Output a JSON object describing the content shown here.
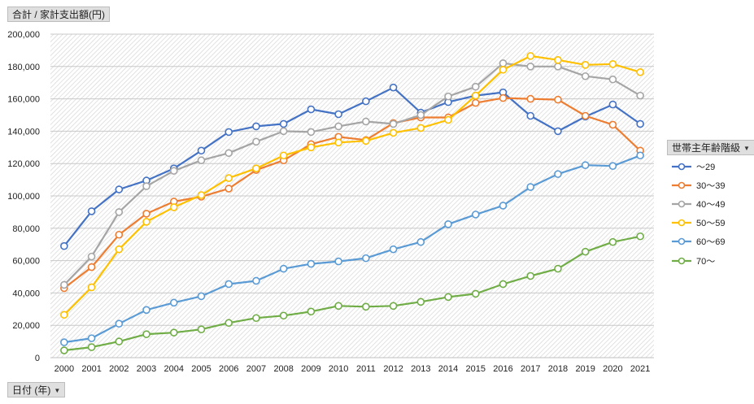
{
  "y_field": {
    "label": "合計 / 家計支出額(円)"
  },
  "x_field": {
    "label": "日付 (年)"
  },
  "legend_field": {
    "label": "世帯主年齢階級"
  },
  "chart_data": {
    "type": "line",
    "title": "",
    "xlabel": "",
    "ylabel": "",
    "ylim": [
      0,
      200000
    ],
    "y_ticks": [
      "0",
      "20,000",
      "40,000",
      "60,000",
      "80,000",
      "100,000",
      "120,000",
      "140,000",
      "160,000",
      "180,000",
      "200,000"
    ],
    "categories": [
      "2000",
      "2001",
      "2002",
      "2003",
      "2004",
      "2005",
      "2006",
      "2007",
      "2008",
      "2009",
      "2010",
      "2011",
      "2012",
      "2013",
      "2014",
      "2015",
      "2016",
      "2017",
      "2018",
      "2019",
      "2020",
      "2021"
    ],
    "grid": true,
    "legend_position": "right",
    "series": [
      {
        "name": "～29",
        "color": "#4472c4",
        "values": [
          69000,
          90500,
          104000,
          109500,
          117000,
          128000,
          139500,
          143000,
          144500,
          153500,
          150500,
          158500,
          167000,
          151500,
          158000,
          162000,
          164000,
          149500,
          140000,
          149000,
          156500,
          144500
        ]
      },
      {
        "name": "30～39",
        "color": "#ed7d31",
        "values": [
          43000,
          56000,
          76000,
          89000,
          96500,
          99500,
          104500,
          116000,
          122000,
          132000,
          136500,
          134500,
          145000,
          148500,
          148500,
          157500,
          160500,
          160000,
          159500,
          149500,
          144000,
          128000
        ]
      },
      {
        "name": "40～49",
        "color": "#a5a5a5",
        "values": [
          45000,
          62500,
          90000,
          106000,
          115500,
          122000,
          126500,
          133500,
          140000,
          139500,
          143000,
          146000,
          144500,
          150000,
          161500,
          167500,
          182000,
          180000,
          180000,
          174000,
          172000,
          162000
        ]
      },
      {
        "name": "50～59",
        "color": "#ffc000",
        "values": [
          26500,
          43500,
          67000,
          84000,
          93000,
          100500,
          111000,
          117000,
          125000,
          130000,
          133000,
          134000,
          139000,
          142000,
          147000,
          162000,
          178000,
          186500,
          184000,
          181000,
          181500,
          176500
        ]
      },
      {
        "name": "60～69",
        "color": "#5b9bd5",
        "values": [
          9500,
          12000,
          21000,
          29500,
          34000,
          38000,
          45500,
          47500,
          55000,
          58000,
          59500,
          61500,
          67000,
          71500,
          82500,
          88500,
          94000,
          105500,
          113500,
          119000,
          118500,
          125000
        ]
      },
      {
        "name": "70～",
        "color": "#70ad47",
        "values": [
          4500,
          6500,
          10000,
          14500,
          15500,
          17500,
          21500,
          24500,
          26000,
          28500,
          32000,
          31500,
          32000,
          34500,
          37500,
          39500,
          45500,
          50500,
          55000,
          65500,
          71500,
          75000
        ]
      }
    ]
  }
}
